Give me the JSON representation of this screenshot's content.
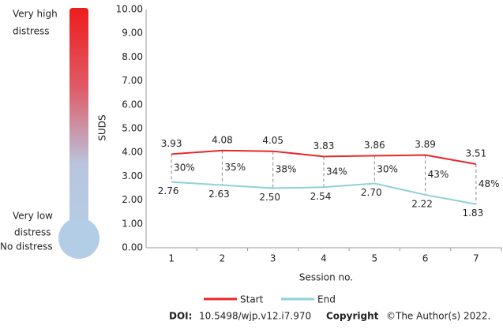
{
  "chart_data": {
    "type": "line",
    "y_label": "SUDS",
    "x_label": "Session no.",
    "categories": [
      "1",
      "2",
      "3",
      "4",
      "5",
      "6",
      "7"
    ],
    "series": [
      {
        "name": "Start",
        "color": "#e8262a",
        "values": [
          3.93,
          4.08,
          4.05,
          3.83,
          3.86,
          3.89,
          3.51
        ]
      },
      {
        "name": "End",
        "color": "#8fcfdc",
        "values": [
          2.76,
          2.63,
          2.5,
          2.54,
          2.7,
          2.22,
          1.83
        ],
        "value_labels": [
          "2.76",
          "2.63",
          "2.50",
          "2.54",
          "2.70",
          "2.22",
          "1.83"
        ]
      }
    ],
    "reductions": {
      "values": [
        30,
        35,
        38,
        34,
        30,
        43,
        48
      ],
      "value_labels": [
        "30%",
        "35%",
        "38%",
        "34%",
        "30%",
        "43%",
        "48%"
      ]
    },
    "ylim": [
      0,
      10
    ],
    "yticks": [
      {
        "value": 0,
        "label": "0.00"
      },
      {
        "value": 1,
        "label": "1.00"
      },
      {
        "value": 2,
        "label": "2.00"
      },
      {
        "value": 3,
        "label": "3.00"
      },
      {
        "value": 4,
        "label": "4.00"
      },
      {
        "value": 5,
        "label": "5.00"
      },
      {
        "value": 6,
        "label": "6.00"
      },
      {
        "value": 7,
        "label": "7.00"
      },
      {
        "value": 8,
        "label": "8.00"
      },
      {
        "value": 9,
        "label": "9.00"
      },
      {
        "value": 10,
        "label": "10.00"
      }
    ],
    "grid": false,
    "legend": "bottom"
  },
  "thermometer": {
    "top_label": [
      "Very high",
      "distress"
    ],
    "low_label": [
      "Very low",
      "distress"
    ],
    "zero_label": "No distress"
  },
  "footer": {
    "doi_label": "DOI:",
    "doi": "10.5498/wjp.v12.i7.970",
    "copyright_label": "Copyright",
    "copyright": "©The Author(s) 2022."
  }
}
